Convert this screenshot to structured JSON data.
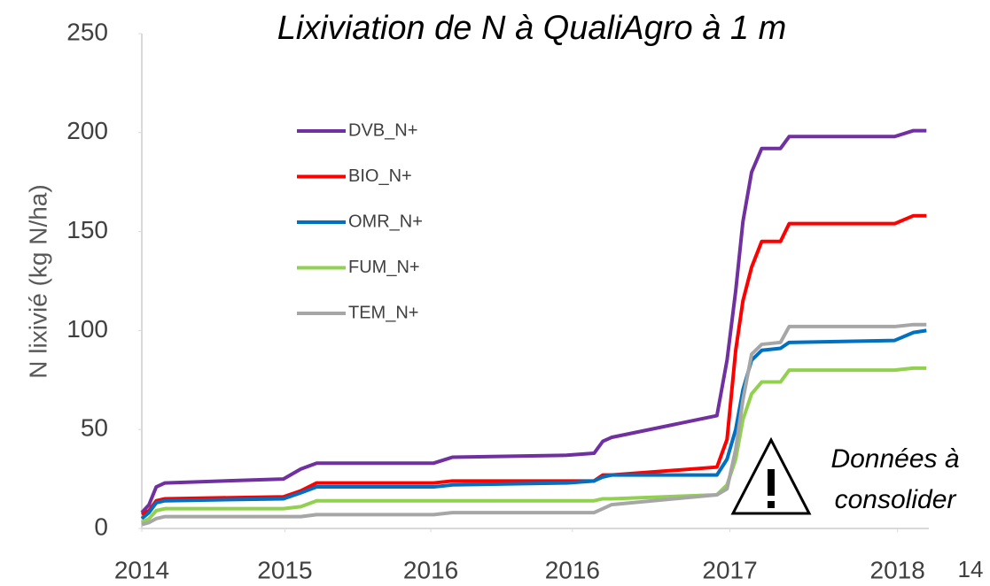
{
  "chart_data": {
    "type": "line",
    "title": "Lixiviation de N à QualiAgro à 1 m",
    "y_label": "N lixivié (kg N/ha)",
    "annotation": [
      "Données à",
      "consolider"
    ],
    "page_number": "14",
    "x": [
      0,
      0.05,
      0.1,
      0.16,
      0.98,
      1.1,
      1.21,
      2.02,
      2.15,
      2.94,
      3.13,
      3.19,
      3.25,
      3.98,
      4.05,
      4.11,
      4.16,
      4.22,
      4.29,
      4.42,
      4.48,
      5.21,
      5.34,
      5.43
    ],
    "series": [
      {
        "name": "DVB_N+",
        "color": "#7030a0",
        "values": [
          8,
          12,
          21,
          23,
          25,
          30,
          33,
          33,
          36,
          37,
          38,
          44,
          46,
          57,
          85,
          120,
          155,
          180,
          192,
          192,
          198,
          198,
          201,
          201
        ]
      },
      {
        "name": "BIO_N+",
        "color": "#ff0000",
        "values": [
          7,
          9,
          14,
          15,
          16,
          19,
          23,
          23,
          24,
          24,
          24,
          27,
          27,
          31,
          45,
          90,
          115,
          132,
          145,
          145,
          154,
          154,
          158,
          158
        ]
      },
      {
        "name": "OMR_N+",
        "color": "#0070c0",
        "values": [
          5,
          8,
          13,
          14,
          15,
          18,
          21,
          21,
          22,
          23,
          24,
          26,
          27,
          27,
          35,
          50,
          70,
          85,
          90,
          91,
          94,
          95,
          99,
          100
        ]
      },
      {
        "name": "FUM_N+",
        "color": "#92d050",
        "values": [
          3,
          5,
          9,
          10,
          10,
          11,
          14,
          14,
          14,
          14,
          14,
          15,
          15,
          17,
          22,
          35,
          55,
          68,
          74,
          74,
          80,
          80,
          81,
          81
        ]
      },
      {
        "name": "TEM_N+",
        "color": "#a6a6a6",
        "values": [
          2,
          3,
          5,
          6,
          6,
          6,
          7,
          7,
          8,
          8,
          8,
          10,
          12,
          17,
          20,
          40,
          65,
          88,
          93,
          94,
          102,
          102,
          103,
          103
        ]
      }
    ],
    "xlim": [
      0,
      5.6
    ],
    "xticks": [
      {
        "value": 0,
        "label": "2014"
      },
      {
        "value": 0.99,
        "label": "2015"
      },
      {
        "value": 2.0,
        "label": "2016"
      },
      {
        "value": 2.98,
        "label": "2016"
      },
      {
        "value": 4.07,
        "label": "2017"
      },
      {
        "value": 5.23,
        "label": "2018"
      }
    ],
    "ylim": [
      0,
      250
    ],
    "yticks": [
      0,
      50,
      100,
      150,
      200,
      250
    ],
    "grid": false
  }
}
